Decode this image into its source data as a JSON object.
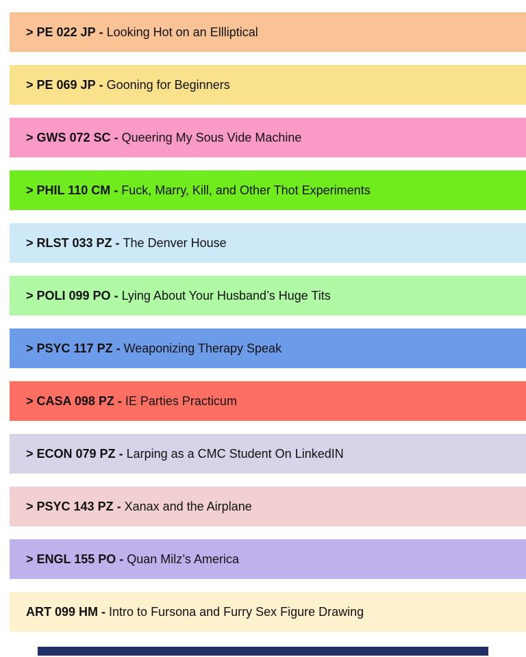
{
  "page": {
    "background": "#FFFFFF"
  },
  "course_list": {
    "items": [
      {
        "prefix": "> ",
        "code": "PE 022 JP",
        "separator": " - ",
        "title": "Looking Hot on an Ellliptical",
        "color": "#FAC395"
      },
      {
        "prefix": "> ",
        "code": "PE 069 JP",
        "separator": " - ",
        "title": "Gooning for Beginners",
        "color": "#FAE28D"
      },
      {
        "prefix": "> ",
        "code": "GWS 072 SC",
        "separator": " - ",
        "title": "Queering My Sous Vide Machine",
        "color": "#FA9AC7"
      },
      {
        "prefix": "> ",
        "code": "PHIL 110 CM",
        "separator": " - ",
        "title": "Fuck, Marry, Kill, and Other Thot Experiments",
        "color": "#70EB1D"
      },
      {
        "prefix": "> ",
        "code": "RLST 033 PZ",
        "separator": " - ",
        "title": "The Denver House",
        "color": "#CDE8F6"
      },
      {
        "prefix": "> ",
        "code": "POLI 099 PO",
        "separator": " - ",
        "title": "Lying About Your Husband’s Huge Tits",
        "color": "#B0F9A5"
      },
      {
        "prefix": "> ",
        "code": "PSYC 117 PZ",
        "separator": " - ",
        "title": "Weaponizing Therapy Speak",
        "color": "#6C9CE9"
      },
      {
        "prefix": "> ",
        "code": "CASA 098 PZ",
        "separator": " - ",
        "title": "IE Parties Practicum",
        "color": "#FC6F62"
      },
      {
        "prefix": "> ",
        "code": "ECON 079 PZ",
        "separator": " - ",
        "title": "Larping as a CMC Student On LinkedIN",
        "color": "#D9D3EA"
      },
      {
        "prefix": "> ",
        "code": "PSYC 143 PZ",
        "separator": " - ",
        "title": "Xanax and the Airplane",
        "color": "#F2CFD1"
      },
      {
        "prefix": "> ",
        "code": "ENGL 155 PO",
        "separator": " - ",
        "title": "Quan Milz’s America",
        "color": "#BFB2EC"
      },
      {
        "prefix": "",
        "code": "ART 099 HM",
        "separator": " - ",
        "title": "Intro to Fursona and Furry Sex Figure Drawing",
        "color": "#FDF1CE"
      }
    ]
  },
  "footer_bar": {
    "color": "#233067"
  }
}
